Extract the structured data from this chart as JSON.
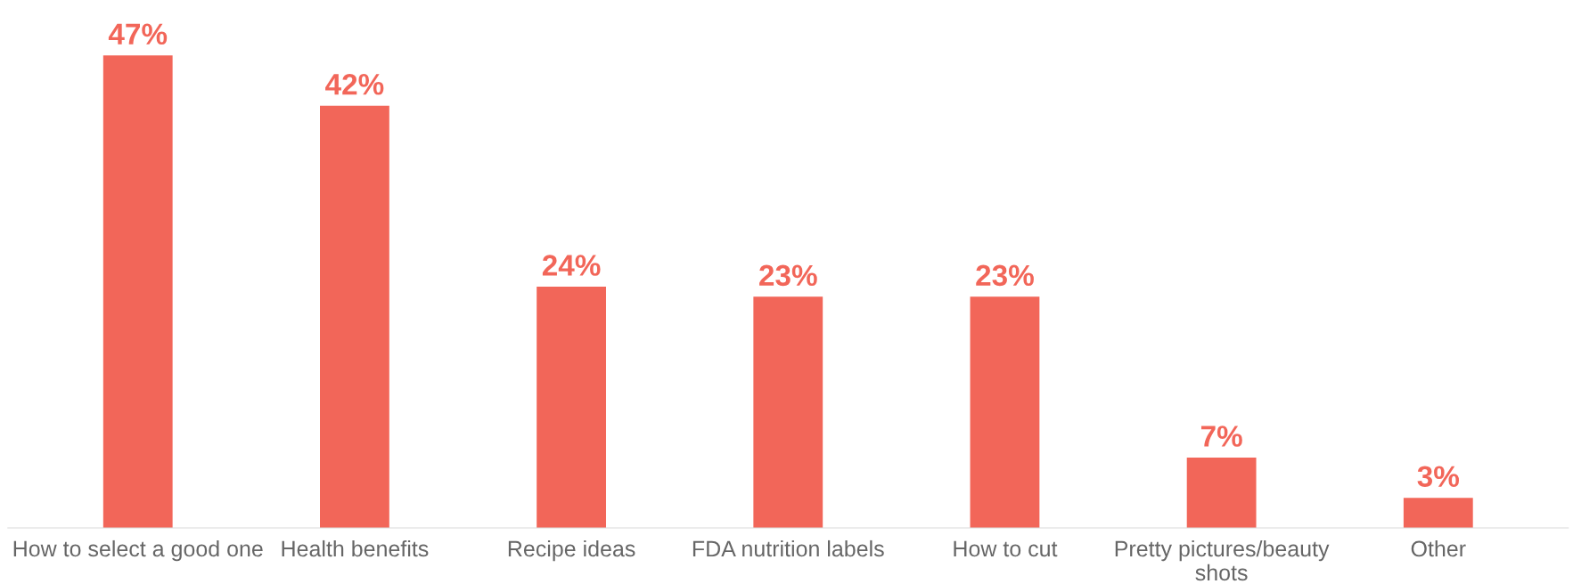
{
  "chart_data": {
    "type": "bar",
    "categories": [
      "How to select a good one",
      "Health benefits",
      "Recipe ideas",
      "FDA nutrition labels",
      "How to cut",
      "Pretty pictures/beauty shots",
      "Other"
    ],
    "values": [
      47,
      42,
      24,
      23,
      23,
      7,
      3
    ],
    "value_labels": [
      "47%",
      "42%",
      "24%",
      "23%",
      "23%",
      "7%",
      "3%"
    ],
    "color": "#f26659",
    "grid": false,
    "legend": false
  }
}
